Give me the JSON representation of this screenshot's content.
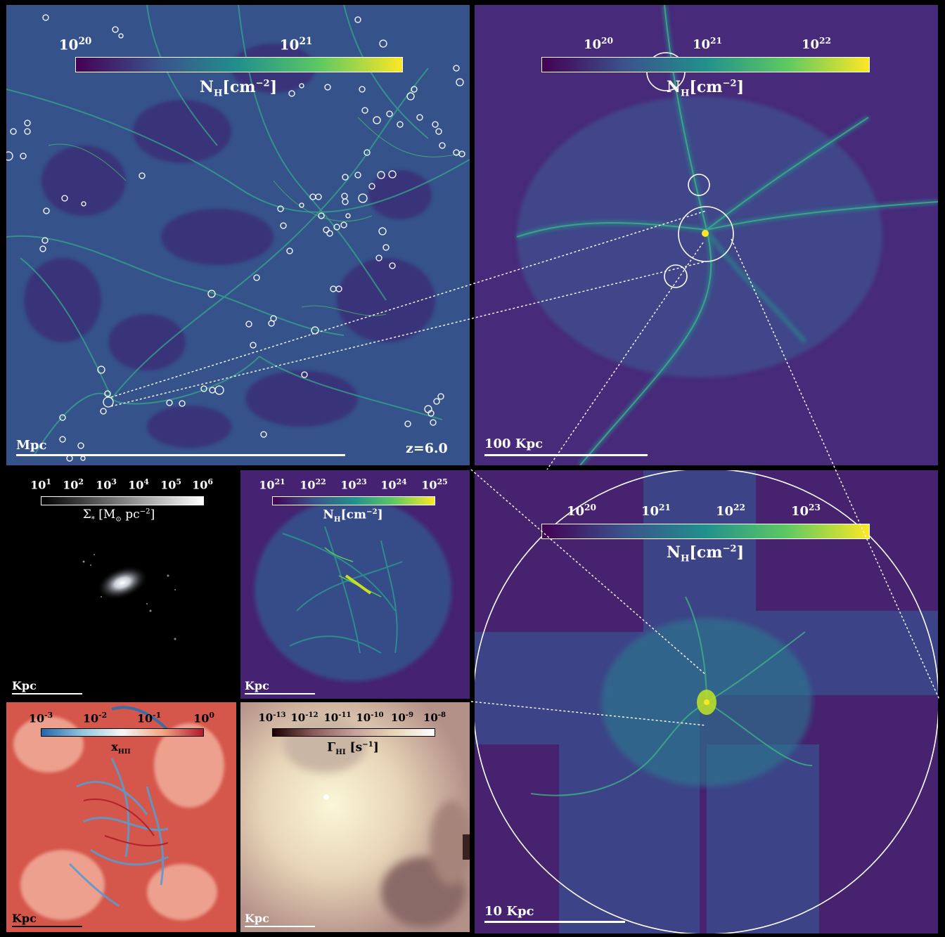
{
  "panels": {
    "large_scale": {
      "colorbar": {
        "ticks": [
          "10",
          "10"
        ],
        "exps": [
          "20",
          "21"
        ],
        "label_main": "N",
        "label_sub": "H",
        "label_unit": "[cm",
        "label_exp": "−2",
        "label_close": "]",
        "colormap": "viridis"
      },
      "scale_label": "Mpc",
      "redshift": "z=6.0"
    },
    "zoom_100kpc": {
      "colorbar": {
        "ticks": [
          "10",
          "10",
          "10"
        ],
        "exps": [
          "20",
          "21",
          "22"
        ],
        "label_main": "N",
        "label_sub": "H",
        "label_unit": "[cm",
        "label_exp": "−2",
        "label_close": "]",
        "colormap": "viridis"
      },
      "scale_label": "100 Kpc"
    },
    "zoom_10kpc": {
      "colorbar": {
        "ticks": [
          "10",
          "10",
          "10",
          "10"
        ],
        "exps": [
          "20",
          "21",
          "22",
          "23"
        ],
        "label_main": "N",
        "label_sub": "H",
        "label_unit": "[cm",
        "label_exp": "−2",
        "label_close": "]",
        "colormap": "viridis"
      },
      "scale_label": "10 Kpc"
    },
    "stars": {
      "colorbar": {
        "ticks": [
          "10",
          "10",
          "10",
          "10",
          "10",
          "10"
        ],
        "exps": [
          "1",
          "2",
          "3",
          "4",
          "5",
          "6"
        ],
        "label": "Σ",
        "label_sub": "*",
        "label_unit": "[M",
        "label_sun": "⊙",
        "label_unit2": " pc",
        "label_exp": "−2",
        "label_close": "]",
        "colormap": "gray"
      },
      "scale_label": "Kpc"
    },
    "gas_kpc": {
      "colorbar": {
        "ticks": [
          "10",
          "10",
          "10",
          "10",
          "10"
        ],
        "exps": [
          "21",
          "22",
          "23",
          "24",
          "25"
        ],
        "label_main": "N",
        "label_sub": "H",
        "label_unit": "[cm",
        "label_exp": "−2",
        "label_close": "]",
        "colormap": "viridis"
      },
      "scale_label": "Kpc"
    },
    "ionized": {
      "colorbar": {
        "ticks": [
          "10",
          "10",
          "10",
          "10"
        ],
        "exps": [
          "-3",
          "-2",
          "-1",
          "0"
        ],
        "label_main": "x",
        "label_sub": "HII",
        "colormap": "RdBu"
      },
      "scale_label": "Kpc"
    },
    "photoion": {
      "colorbar": {
        "ticks": [
          "10",
          "10",
          "10",
          "10",
          "10",
          "10"
        ],
        "exps": [
          "-13",
          "-12",
          "-11",
          "-10",
          "-9",
          "-8"
        ],
        "label_main": "Γ",
        "label_sub": "HI",
        "label_unit": " [s",
        "label_exp": "−1",
        "label_close": "]",
        "colormap": "pink"
      },
      "scale_label": "Kpc"
    }
  }
}
